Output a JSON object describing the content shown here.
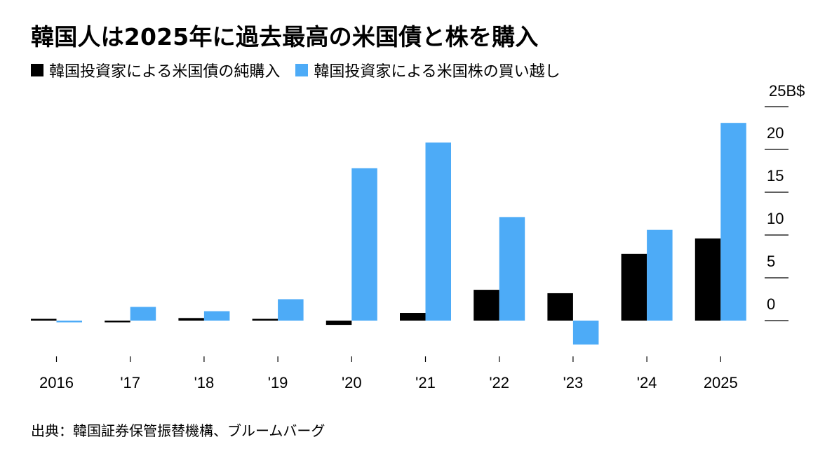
{
  "chart_data": {
    "type": "bar",
    "title": "韓国人は2025年に過去最高の米国債と株を購入",
    "categories": [
      "2016",
      "'17",
      "'18",
      "'19",
      "'20",
      "'21",
      "'22",
      "'23",
      "'24",
      "2025"
    ],
    "series": [
      {
        "name": "韓国投資家による米国債の純購入",
        "color": "#000000",
        "values": [
          0.2,
          -0.1,
          0.3,
          0.1,
          -0.5,
          0.9,
          3.6,
          3.2,
          7.8,
          9.6
        ]
      },
      {
        "name": "韓国投資家による米国株の買い越し",
        "color": "#4DABF7",
        "values": [
          -0.1,
          1.6,
          1.1,
          2.5,
          17.8,
          20.8,
          12.1,
          -2.8,
          10.6,
          23.1
        ]
      }
    ],
    "y_unit_label": "25B$",
    "y_tick_labels": [
      "20",
      "15",
      "10",
      "5",
      "0"
    ],
    "ylim": [
      -3,
      25
    ],
    "y_ticks": [
      0,
      5,
      10,
      15,
      20,
      25
    ],
    "axis_side": "right",
    "grid": false,
    "legend_position": "top-left"
  },
  "source": "出典：韓国証券保管振替機構、ブルームバーグ"
}
